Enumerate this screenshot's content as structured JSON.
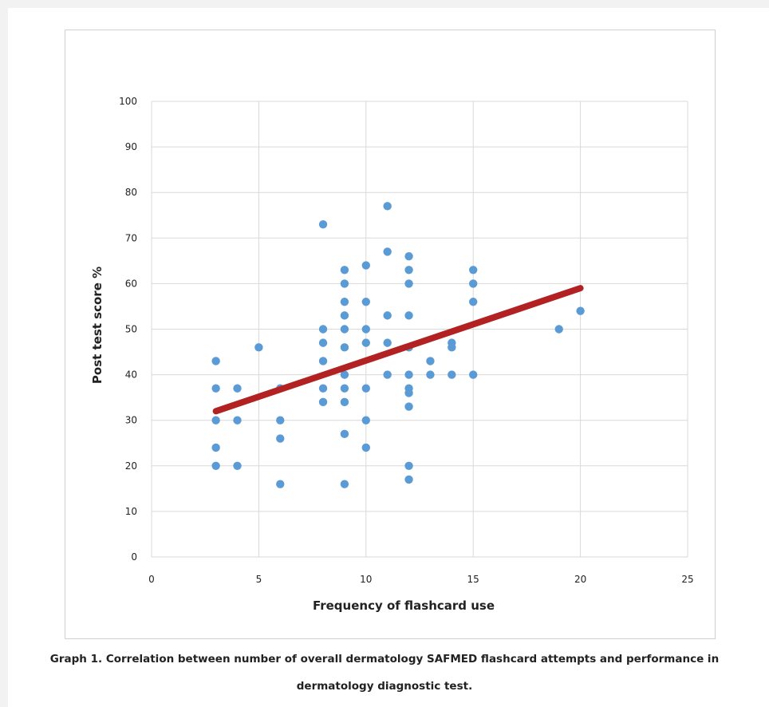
{
  "chart_data": {
    "type": "scatter",
    "xlabel": "Frequency of flashcard use",
    "ylabel": "Post test score %",
    "xlim": [
      0,
      25
    ],
    "ylim": [
      0,
      100
    ],
    "x_ticks": [
      "0",
      "5",
      "10",
      "15",
      "20",
      "25"
    ],
    "y_ticks": [
      "0",
      "10",
      "20",
      "30",
      "40",
      "50",
      "60",
      "70",
      "80",
      "90",
      "100"
    ],
    "grid": true,
    "legend": "none",
    "colors": {
      "points": "#5b9bd5",
      "trendline": "#b22222",
      "grid": "#d9d9d9"
    },
    "points": [
      [
        3,
        43
      ],
      [
        3,
        37
      ],
      [
        3,
        30
      ],
      [
        3,
        24
      ],
      [
        3,
        20
      ],
      [
        4,
        37
      ],
      [
        4,
        30
      ],
      [
        4,
        20
      ],
      [
        5,
        46
      ],
      [
        6,
        37
      ],
      [
        6,
        30
      ],
      [
        6,
        26
      ],
      [
        6,
        16
      ],
      [
        8,
        73
      ],
      [
        8,
        50
      ],
      [
        8,
        47
      ],
      [
        8,
        43
      ],
      [
        8,
        37
      ],
      [
        8,
        34
      ],
      [
        9,
        63
      ],
      [
        9,
        60
      ],
      [
        9,
        56
      ],
      [
        9,
        53
      ],
      [
        9,
        50
      ],
      [
        9,
        46
      ],
      [
        9,
        40
      ],
      [
        9,
        37
      ],
      [
        9,
        34
      ],
      [
        9,
        27
      ],
      [
        9,
        16
      ],
      [
        10,
        64
      ],
      [
        10,
        56
      ],
      [
        10,
        50
      ],
      [
        10,
        47
      ],
      [
        10,
        37
      ],
      [
        10,
        30
      ],
      [
        10,
        24
      ],
      [
        11,
        77
      ],
      [
        11,
        67
      ],
      [
        11,
        53
      ],
      [
        11,
        47
      ],
      [
        11,
        40
      ],
      [
        12,
        66
      ],
      [
        12,
        63
      ],
      [
        12,
        60
      ],
      [
        12,
        53
      ],
      [
        12,
        46
      ],
      [
        12,
        40
      ],
      [
        12,
        37
      ],
      [
        12,
        36
      ],
      [
        12,
        33
      ],
      [
        12,
        20
      ],
      [
        12,
        17
      ],
      [
        13,
        43
      ],
      [
        13,
        40
      ],
      [
        14,
        47
      ],
      [
        14,
        46
      ],
      [
        14,
        40
      ],
      [
        15,
        63
      ],
      [
        15,
        60
      ],
      [
        15,
        56
      ],
      [
        15,
        40
      ],
      [
        19,
        50
      ],
      [
        20,
        54
      ]
    ],
    "trendline": {
      "x": [
        3,
        20
      ],
      "y": [
        32,
        59
      ]
    }
  },
  "caption": {
    "line1": "Graph 1. Correlation between number of overall dermatology SAFMED flashcard attempts and performance in",
    "line2": "dermatology diagnostic test."
  }
}
